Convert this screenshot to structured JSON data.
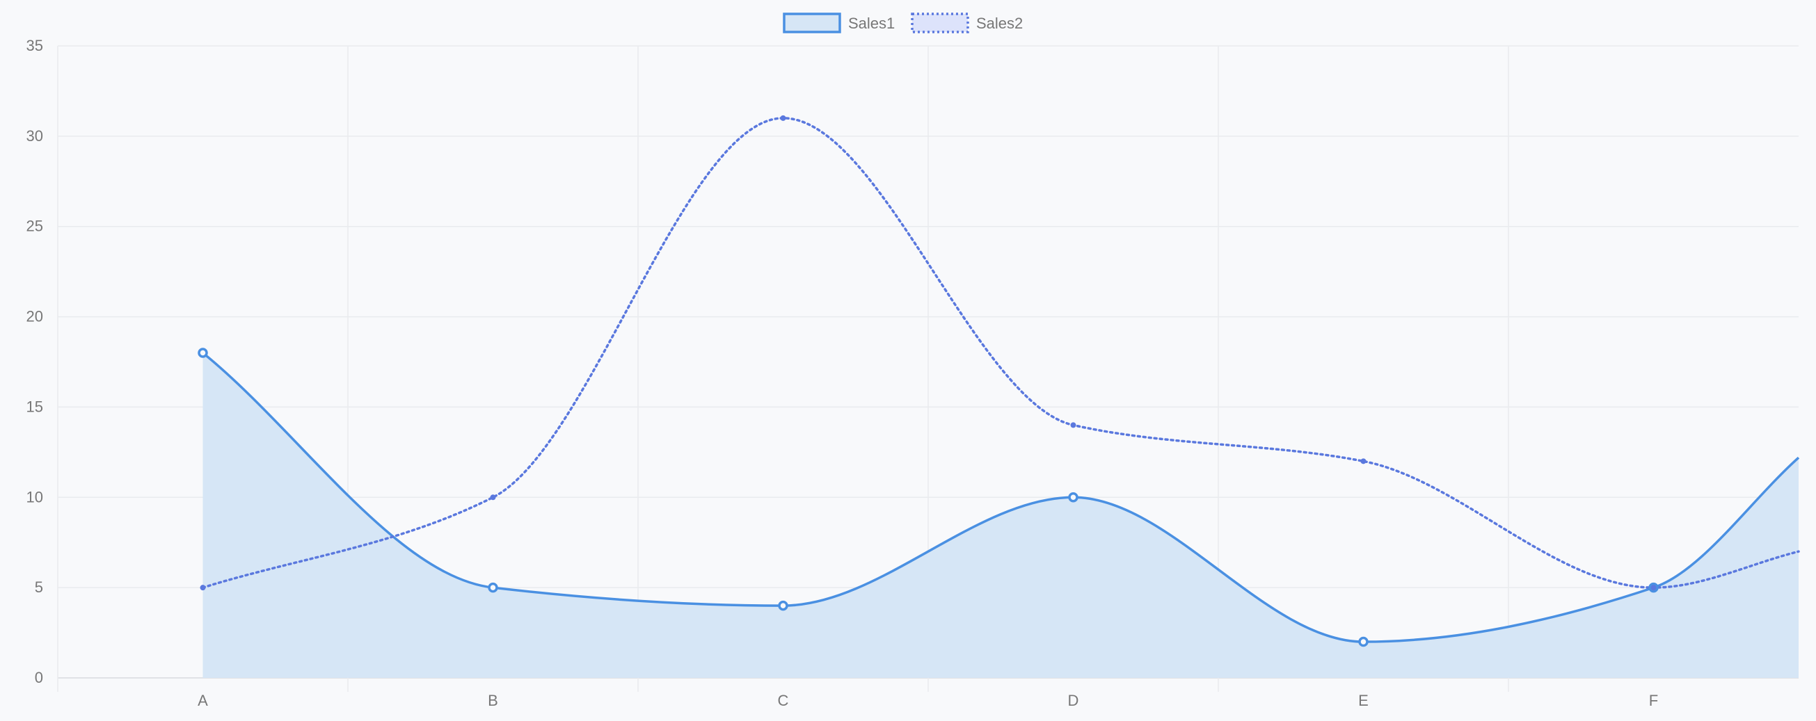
{
  "chart_data": {
    "type": "line",
    "categories": [
      "A",
      "B",
      "C",
      "D",
      "E",
      "F"
    ],
    "ylim": [
      0,
      35
    ],
    "yticks": [
      0,
      5,
      10,
      15,
      20,
      25,
      30,
      35
    ],
    "grid": true,
    "legend_position": "top-center",
    "series": [
      {
        "name": "Sales1",
        "values": [
          18,
          5,
          4,
          10,
          2,
          5
        ],
        "trailing_value": 12.2,
        "color": "#4a90e2",
        "fill": "#d6e6f6",
        "style": "solid",
        "filled": true
      },
      {
        "name": "Sales2",
        "values": [
          5,
          10,
          31,
          14,
          12,
          5
        ],
        "trailing_value": 7,
        "color": "#5a78de",
        "fill": "#dde3fb",
        "style": "dotted",
        "filled": false
      }
    ]
  }
}
